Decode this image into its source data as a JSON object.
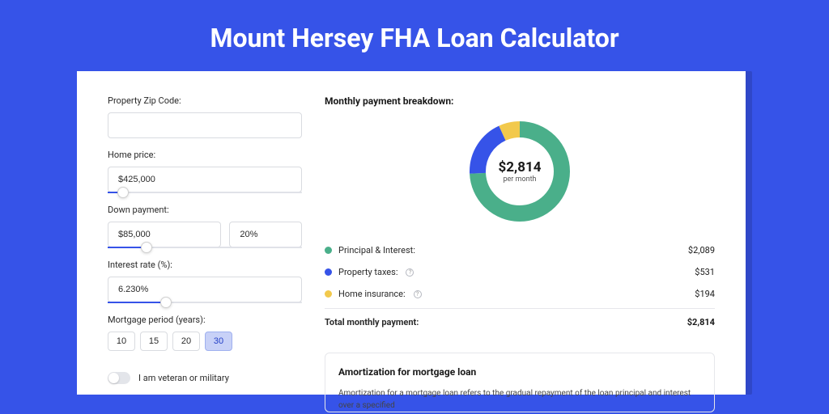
{
  "title": "Mount Hersey FHA Loan Calculator",
  "colors": {
    "page_bg": "#3653e8",
    "shadow_bg": "#2f47c8",
    "card_bg": "#ffffff",
    "accent": "#3653e8",
    "border": "#d9dbe0"
  },
  "form": {
    "zip": {
      "label": "Property Zip Code:",
      "value": ""
    },
    "home_price": {
      "label": "Home price:",
      "value": "$425,000",
      "slider_pct": 8
    },
    "down_payment": {
      "label": "Down payment:",
      "amount": "$85,000",
      "percent": "20%",
      "slider_pct": 20
    },
    "interest_rate": {
      "label": "Interest rate (%):",
      "value": "6.230%",
      "slider_pct": 30
    },
    "mortgage_period": {
      "label": "Mortgage period (years):",
      "options": [
        "10",
        "15",
        "20",
        "30"
      ],
      "selected": "30"
    },
    "veteran": {
      "label": "I am veteran or military",
      "checked": false
    }
  },
  "breakdown": {
    "title": "Monthly payment breakdown:",
    "donut": {
      "value": "$2,814",
      "sub": "per month",
      "slices": [
        {
          "key": "principal_interest",
          "pct": 74.2,
          "color": "#4aaf8a"
        },
        {
          "key": "property_taxes",
          "pct": 18.9,
          "color": "#3653e8"
        },
        {
          "key": "home_insurance",
          "pct": 6.9,
          "color": "#f2c94c"
        }
      ],
      "stroke_width": 20
    },
    "rows": [
      {
        "label": "Principal & Interest:",
        "value": "$2,089",
        "color": "#4aaf8a",
        "info": false
      },
      {
        "label": "Property taxes:",
        "value": "$531",
        "color": "#3653e8",
        "info": true
      },
      {
        "label": "Home insurance:",
        "value": "$194",
        "color": "#f2c94c",
        "info": true
      }
    ],
    "total": {
      "label": "Total monthly payment:",
      "value": "$2,814"
    }
  },
  "amortization": {
    "title": "Amortization for mortgage loan",
    "text": "Amortization for a mortgage loan refers to the gradual repayment of the loan principal and interest over a specified"
  }
}
